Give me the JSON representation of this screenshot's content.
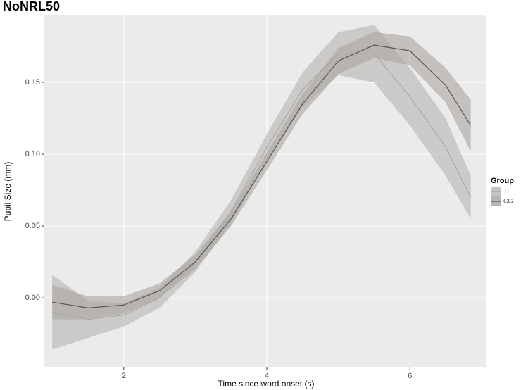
{
  "chart_data": {
    "type": "line",
    "title": "NoNRL50",
    "x_label": "Time since word onset (s)",
    "y_label": "Pupil Size (mm)",
    "legend_title": "Group",
    "legend_position": "right",
    "grid": true,
    "x": [
      1,
      1.5,
      2,
      2.5,
      3,
      3.5,
      4,
      4.5,
      5,
      5.5,
      6,
      6.5,
      6.85
    ],
    "series": [
      {
        "name": "TI",
        "color": "#a9a9a9",
        "band_color": "#b8b4b0",
        "values": [
          -0.01,
          -0.015,
          -0.012,
          0.0,
          0.025,
          0.06,
          0.105,
          0.145,
          0.17,
          0.17,
          0.14,
          0.105,
          0.07
        ],
        "lower": [
          -0.036,
          -0.028,
          -0.02,
          -0.007,
          0.018,
          0.052,
          0.096,
          0.133,
          0.155,
          0.15,
          0.12,
          0.085,
          0.055
        ],
        "upper": [
          0.016,
          -0.002,
          -0.004,
          0.007,
          0.032,
          0.068,
          0.114,
          0.157,
          0.185,
          0.19,
          0.16,
          0.125,
          0.085
        ]
      },
      {
        "name": "CG",
        "color": "#555555",
        "band_color": "#a8a39f",
        "values": [
          -0.003,
          -0.007,
          -0.005,
          0.005,
          0.025,
          0.055,
          0.095,
          0.135,
          0.165,
          0.176,
          0.172,
          0.148,
          0.12
        ],
        "lower": [
          -0.015,
          -0.015,
          -0.011,
          0.0,
          0.02,
          0.05,
          0.089,
          0.128,
          0.156,
          0.167,
          0.162,
          0.136,
          0.102
        ],
        "upper": [
          0.009,
          0.001,
          0.001,
          0.01,
          0.03,
          0.06,
          0.101,
          0.142,
          0.174,
          0.185,
          0.182,
          0.16,
          0.138
        ]
      }
    ],
    "xlim": [
      0.89,
      7.06
    ],
    "ylim": [
      -0.0485,
      0.1966
    ],
    "xticks": [
      2,
      4,
      6
    ],
    "yticks": [
      {
        "value": 0,
        "label": "0.00"
      },
      {
        "value": 0.05,
        "label": "0.05"
      },
      {
        "value": 0.1,
        "label": "0.10"
      },
      {
        "value": 0.15,
        "label": "0.15"
      }
    ]
  }
}
